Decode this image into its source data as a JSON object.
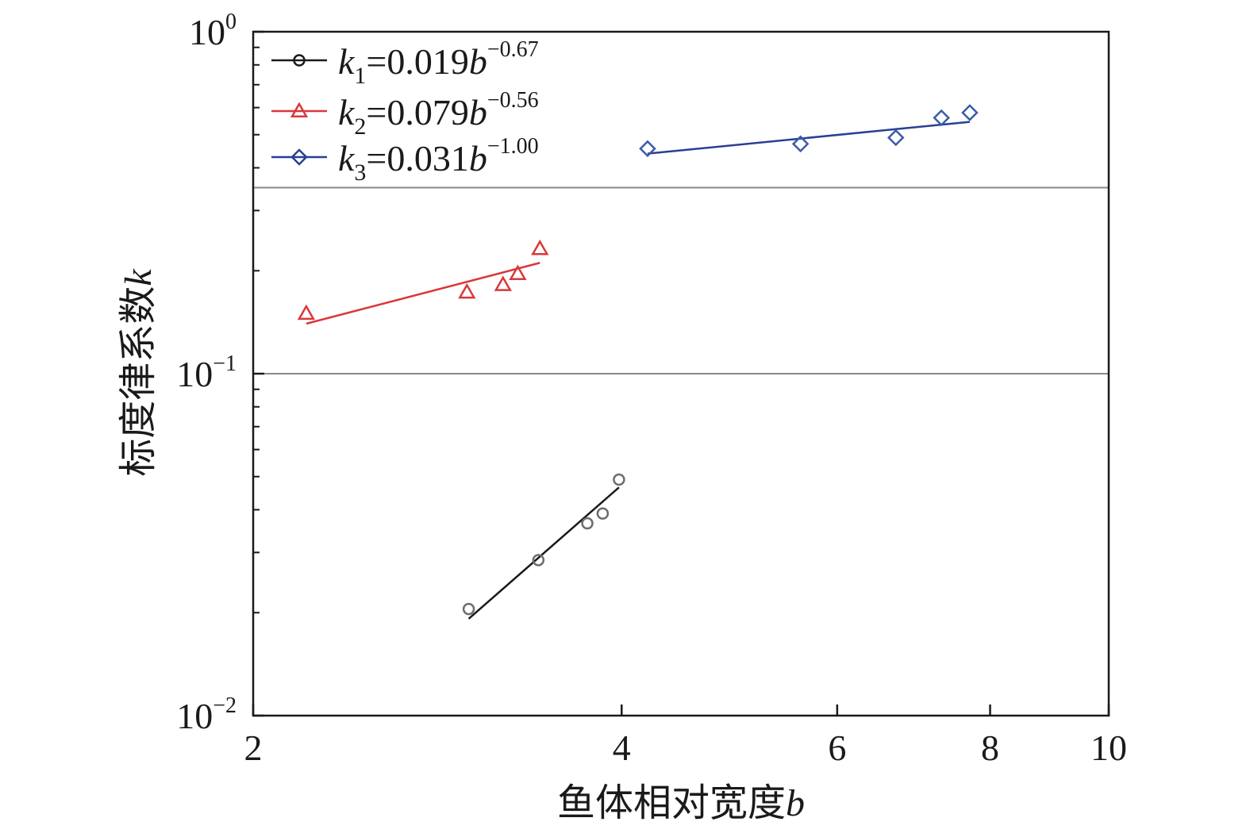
{
  "chart_data": {
    "type": "scatter",
    "xlabel": "鱼体相对宽度",
    "xlabel_var": "b",
    "ylabel": "标度律系数",
    "ylabel_var": "k",
    "x_scale": "log",
    "y_scale": "log",
    "xlim": [
      2,
      10
    ],
    "ylim": [
      0.01,
      1
    ],
    "x_ticks": [
      2,
      4,
      6,
      8,
      10
    ],
    "y_ticks": [
      {
        "value": 0.01,
        "base": "10",
        "exp": "−2"
      },
      {
        "value": 0.1,
        "base": "10",
        "exp": "−1"
      },
      {
        "value": 1,
        "base": "10",
        "exp": "0"
      }
    ],
    "reference_lines_y": [
      0.1,
      0.35
    ],
    "legend_position": "top-left",
    "series": [
      {
        "name": "k1=0.019b^-0.67",
        "legend": {
          "var": "k",
          "sub": "1",
          "coef": "=0.019",
          "base": "b",
          "exp": "−0.67"
        },
        "marker": "circle",
        "color": "#6e6e6e",
        "line_color": "#1a1a1a",
        "x": [
          3.0,
          3.42,
          3.75,
          3.86,
          3.98
        ],
        "y": [
          0.0205,
          0.0285,
          0.0365,
          0.039,
          0.049
        ],
        "fit_x": [
          3.0,
          3.98
        ],
        "fit_y": [
          0.0192,
          0.0465
        ]
      },
      {
        "name": "k2=0.079b^-0.56",
        "legend": {
          "var": "k",
          "sub": "2",
          "coef": "=0.079",
          "base": "b",
          "exp": "−0.56"
        },
        "marker": "triangle",
        "color": "#d9383a",
        "line_color": "#d9383a",
        "x": [
          2.21,
          2.99,
          3.2,
          3.29,
          3.43
        ],
        "y": [
          0.15,
          0.173,
          0.182,
          0.196,
          0.232
        ],
        "fit_x": [
          2.21,
          3.43
        ],
        "fit_y": [
          0.14,
          0.211
        ]
      },
      {
        "name": "k3=0.031b^-1.00",
        "legend": {
          "var": "k",
          "sub": "3",
          "coef": "=0.031",
          "base": "b",
          "exp": "−1.00"
        },
        "marker": "diamond",
        "color": "#3a5ba8",
        "line_color": "#2a3f95",
        "x": [
          4.2,
          5.6,
          6.7,
          7.3,
          7.7
        ],
        "y": [
          0.455,
          0.47,
          0.49,
          0.56,
          0.58
        ],
        "fit_x": [
          4.2,
          7.7
        ],
        "fit_y": [
          0.44,
          0.545
        ]
      }
    ]
  }
}
